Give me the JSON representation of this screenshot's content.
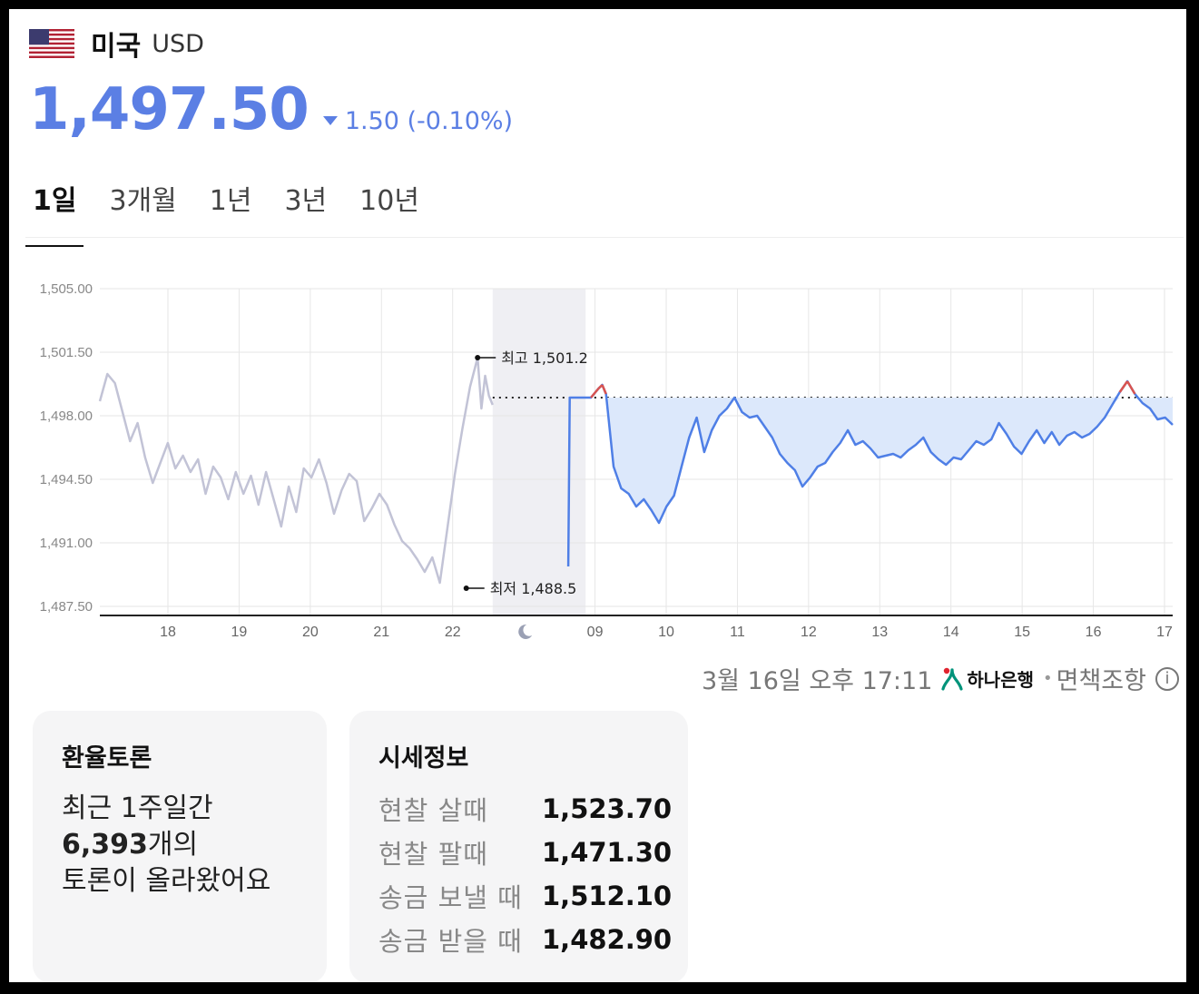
{
  "header": {
    "country": "미국",
    "code": "USD",
    "flag_icon": "us-flag-icon"
  },
  "price": {
    "value": "1,497.50",
    "change": "1.50 (-0.10%)",
    "direction": "down",
    "color": "#5b7fe4"
  },
  "tabs": [
    {
      "label": "1일",
      "active": true
    },
    {
      "label": "3개월",
      "active": false
    },
    {
      "label": "1년",
      "active": false
    },
    {
      "label": "3년",
      "active": false
    },
    {
      "label": "10년",
      "active": false
    }
  ],
  "chart_data": {
    "type": "line",
    "y_ticks": [
      "1,505.00",
      "1,501.50",
      "1,498.00",
      "1,494.50",
      "1,491.00",
      "1,487.50"
    ],
    "ylim": [
      1487.5,
      1505.0
    ],
    "x_ticks": [
      "18",
      "19",
      "20",
      "21",
      "22",
      "",
      "09",
      "10",
      "11",
      "12",
      "13",
      "14",
      "15",
      "16",
      "17"
    ],
    "night_icon": "moon-icon",
    "reference_value": 1499.0,
    "high_label": "최고 1,501.2",
    "low_label": "최저 1,488.5",
    "grid": true,
    "series": [
      {
        "color": "#c2c3d6",
        "x": [
          17.0,
          17.1,
          17.2,
          17.3,
          17.4,
          17.5,
          17.6,
          17.7,
          17.8,
          17.9,
          18.0,
          18.1,
          18.2,
          18.3,
          18.4,
          18.5,
          18.6,
          18.7,
          18.8,
          18.9,
          19.0,
          19.1,
          19.2,
          19.3,
          19.4,
          19.5,
          19.6,
          19.7,
          19.8,
          19.9,
          20.0,
          20.1,
          20.2,
          20.3,
          20.4,
          20.5,
          20.6,
          20.7,
          20.8,
          20.9,
          21.0,
          21.1,
          21.2,
          21.3,
          21.4,
          21.5,
          21.6,
          21.7,
          21.8,
          21.9,
          22.0,
          22.05,
          22.1,
          22.15,
          22.2
        ],
        "y": [
          1498.8,
          1500.3,
          1499.8,
          1498.2,
          1496.6,
          1497.6,
          1495.7,
          1494.3,
          1495.4,
          1496.5,
          1495.1,
          1495.8,
          1494.9,
          1495.6,
          1493.7,
          1495.2,
          1494.6,
          1493.4,
          1494.9,
          1493.7,
          1494.7,
          1493.1,
          1494.9,
          1493.4,
          1491.9,
          1494.1,
          1492.7,
          1495.1,
          1494.6,
          1495.6,
          1494.3,
          1492.6,
          1493.9,
          1494.8,
          1494.4,
          1492.2,
          1492.9,
          1493.7,
          1493.1,
          1492.0,
          1491.1,
          1490.7,
          1490.1,
          1489.4,
          1490.2,
          1488.8,
          1491.8,
          1494.8,
          1497.3,
          1499.6,
          1501.2,
          1498.4,
          1500.2,
          1499.1,
          1498.6
        ]
      },
      {
        "color": "#4f7fe6",
        "x": [
          23.2,
          23.22,
          23.5,
          23.6,
          23.65,
          23.7,
          23.8,
          23.9,
          24.0,
          24.1,
          24.2,
          24.3,
          24.4,
          24.5,
          24.6,
          24.7,
          24.8,
          24.9,
          25.0,
          25.1,
          25.2,
          25.3,
          25.4,
          25.5,
          25.6,
          25.7,
          25.8,
          25.9,
          26.0,
          26.1,
          26.2,
          26.3,
          26.4,
          26.5,
          26.6,
          26.7,
          26.8,
          26.9,
          27.0,
          27.1,
          27.2,
          27.3,
          27.4,
          27.5,
          27.6,
          27.7,
          27.8,
          27.9,
          28.0,
          28.1,
          28.2,
          28.3,
          28.4,
          28.5,
          28.6,
          28.7,
          28.8,
          28.9,
          29.0,
          29.1,
          29.2,
          29.3,
          29.4,
          29.5,
          29.6,
          29.7,
          29.8,
          29.9,
          30.0,
          30.1,
          30.2,
          30.3,
          30.4,
          30.5,
          30.6,
          30.7,
          30.8,
          30.9,
          31.0,
          31.1,
          31.2
        ],
        "y": [
          1489.7,
          1499.0,
          1499.0,
          1499.5,
          1499.7,
          1499.2,
          1495.2,
          1494.0,
          1493.7,
          1493.0,
          1493.4,
          1492.8,
          1492.1,
          1493.0,
          1493.6,
          1495.2,
          1496.8,
          1497.9,
          1496.0,
          1497.2,
          1498.0,
          1498.4,
          1499.0,
          1498.2,
          1497.9,
          1498.0,
          1497.4,
          1496.8,
          1495.9,
          1495.4,
          1495.0,
          1494.1,
          1494.6,
          1495.2,
          1495.4,
          1496.0,
          1496.5,
          1497.2,
          1496.4,
          1496.6,
          1496.2,
          1495.7,
          1495.8,
          1495.9,
          1495.7,
          1496.1,
          1496.4,
          1496.8,
          1496.0,
          1495.6,
          1495.3,
          1495.7,
          1495.6,
          1496.1,
          1496.6,
          1496.4,
          1496.7,
          1497.6,
          1497.0,
          1496.3,
          1495.9,
          1496.6,
          1497.2,
          1496.5,
          1497.1,
          1496.4,
          1496.9,
          1497.1,
          1496.8,
          1497.0,
          1497.4,
          1497.9,
          1498.6,
          1499.3,
          1499.9,
          1499.2,
          1498.7,
          1498.4,
          1497.8,
          1497.9,
          1497.5
        ]
      }
    ]
  },
  "footer": {
    "timestamp": "3월 16일 오후 17:11",
    "bank": "하나은행",
    "disclaimer": "면책조항",
    "bank_icon": "hana-bank-logo",
    "info_icon": "info-icon"
  },
  "discussion": {
    "title": "환율토론",
    "line1": "최근 1주일간",
    "count": "6,393",
    "count_suffix": "개의",
    "line3": "토론이 올라왔어요"
  },
  "rates": {
    "title": "시세정보",
    "rows": [
      {
        "label": "현찰 살때",
        "value": "1,523.70"
      },
      {
        "label": "현찰 팔때",
        "value": "1,471.30"
      },
      {
        "label": "송금 보낼 때",
        "value": "1,512.10"
      },
      {
        "label": "송금 받을 때",
        "value": "1,482.90"
      }
    ]
  }
}
